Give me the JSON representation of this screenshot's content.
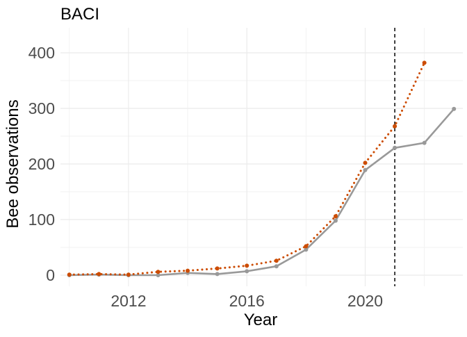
{
  "chart_data": {
    "type": "line",
    "title": "BACI",
    "xlabel": "Year",
    "ylabel": "Bee observations",
    "xlim": [
      2009.7,
      2023.3
    ],
    "ylim": [
      -20,
      445
    ],
    "x_ticks": [
      2012,
      2016,
      2020
    ],
    "y_ticks": [
      0,
      100,
      200,
      300,
      400
    ],
    "grid": true,
    "reference_line": {
      "x": 2021,
      "style": "dashed",
      "color": "#000000"
    },
    "series": [
      {
        "style": "solid",
        "color": "#999999",
        "x": [
          2010,
          2011,
          2012,
          2013,
          2014,
          2015,
          2016,
          2017,
          2018,
          2019,
          2020,
          2021,
          2022,
          2023
        ],
        "y": [
          0,
          1,
          0,
          0,
          4,
          2,
          7,
          16,
          46,
          98,
          189,
          229,
          238,
          299
        ]
      },
      {
        "style": "dotted",
        "color": "#CC4C02",
        "x": [
          2010,
          2011,
          2012,
          2013,
          2014,
          2015,
          2016,
          2017,
          2018,
          2019,
          2020,
          2021,
          2022
        ],
        "y": [
          1,
          2,
          1,
          6,
          8,
          12,
          17,
          26,
          52,
          106,
          202,
          268,
          382
        ]
      }
    ]
  }
}
